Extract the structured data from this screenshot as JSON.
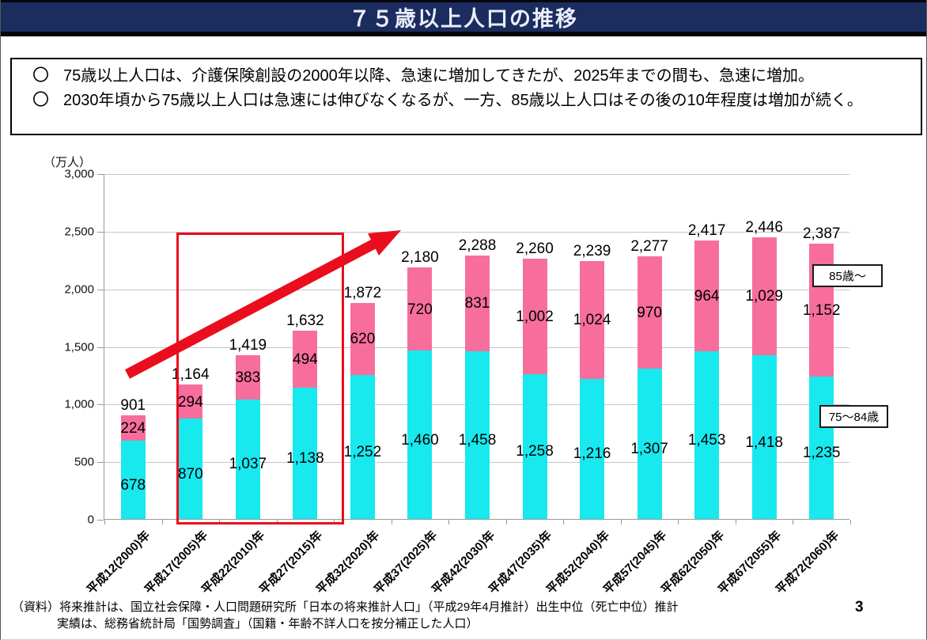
{
  "header": {
    "title": "７５歳以上人口の推移"
  },
  "summary": {
    "bullet_marker": "〇",
    "bullets": [
      "75歳以上人口は、介護保険創設の2000年以降、急速に増加してきたが、2025年までの間も、急速に増加。",
      "2030年頃から75歳以上人口は急速には伸びなくなるが、一方、85歳以上人口はその後の10年程度は増加が続く。"
    ]
  },
  "chart_data": {
    "type": "bar",
    "stacked": true,
    "title": "",
    "unit_label": "（万人）",
    "xlabel": "",
    "ylabel": "万人",
    "ylim": [
      0,
      3000
    ],
    "yticks": [
      0,
      500,
      1000,
      1500,
      2000,
      2500,
      3000
    ],
    "grid": true,
    "legend_position": "right-inside",
    "categories": [
      "平成12(2000)年",
      "平成17(2005)年",
      "平成22(2010)年",
      "平成27(2015)年",
      "平成32(2020)年",
      "平成37(2025)年",
      "平成42(2030)年",
      "平成47(2035)年",
      "平成52(2040)年",
      "平成57(2045)年",
      "平成62(2050)年",
      "平成67(2055)年",
      "平成72(2060)年"
    ],
    "series": [
      {
        "name": "75〜84歳",
        "color_key": "cyan",
        "values": [
          678,
          870,
          1037,
          1138,
          1252,
          1460,
          1458,
          1258,
          1216,
          1307,
          1453,
          1418,
          1235
        ]
      },
      {
        "name": "85歳〜",
        "color_key": "pink",
        "values": [
          224,
          294,
          383,
          494,
          620,
          720,
          831,
          1002,
          1024,
          970,
          964,
          1029,
          1152
        ]
      }
    ],
    "totals": [
      901,
      1164,
      1419,
      1632,
      1872,
      2180,
      2288,
      2260,
      2239,
      2277,
      2417,
      2446,
      2387
    ],
    "highlight": {
      "type": "red-box",
      "from_category": "平成27(2015)年",
      "to_category": "平成37(2025)年"
    },
    "annotation": "red upward trend arrow over 2000-2025 bars"
  },
  "source": {
    "line1": "（資料）将来推計は、国立社会保障・人口問題研究所「日本の将来推計人口」（平成29年4月推計）出生中位（死亡中位）推計",
    "line2": "実績は、総務省統計局「国勢調査」（国籍・年齢不詳人口を按分補正した人口）"
  },
  "page": {
    "number": "3"
  },
  "colors": {
    "navy": "#1B2D5F",
    "title_text": "#EBEDFA",
    "pink": "#F76E9C",
    "cyan": "#17E9EF",
    "red": "#EA0D1E",
    "grid": "#C6C6C6",
    "axis": "#9B9B9B"
  }
}
